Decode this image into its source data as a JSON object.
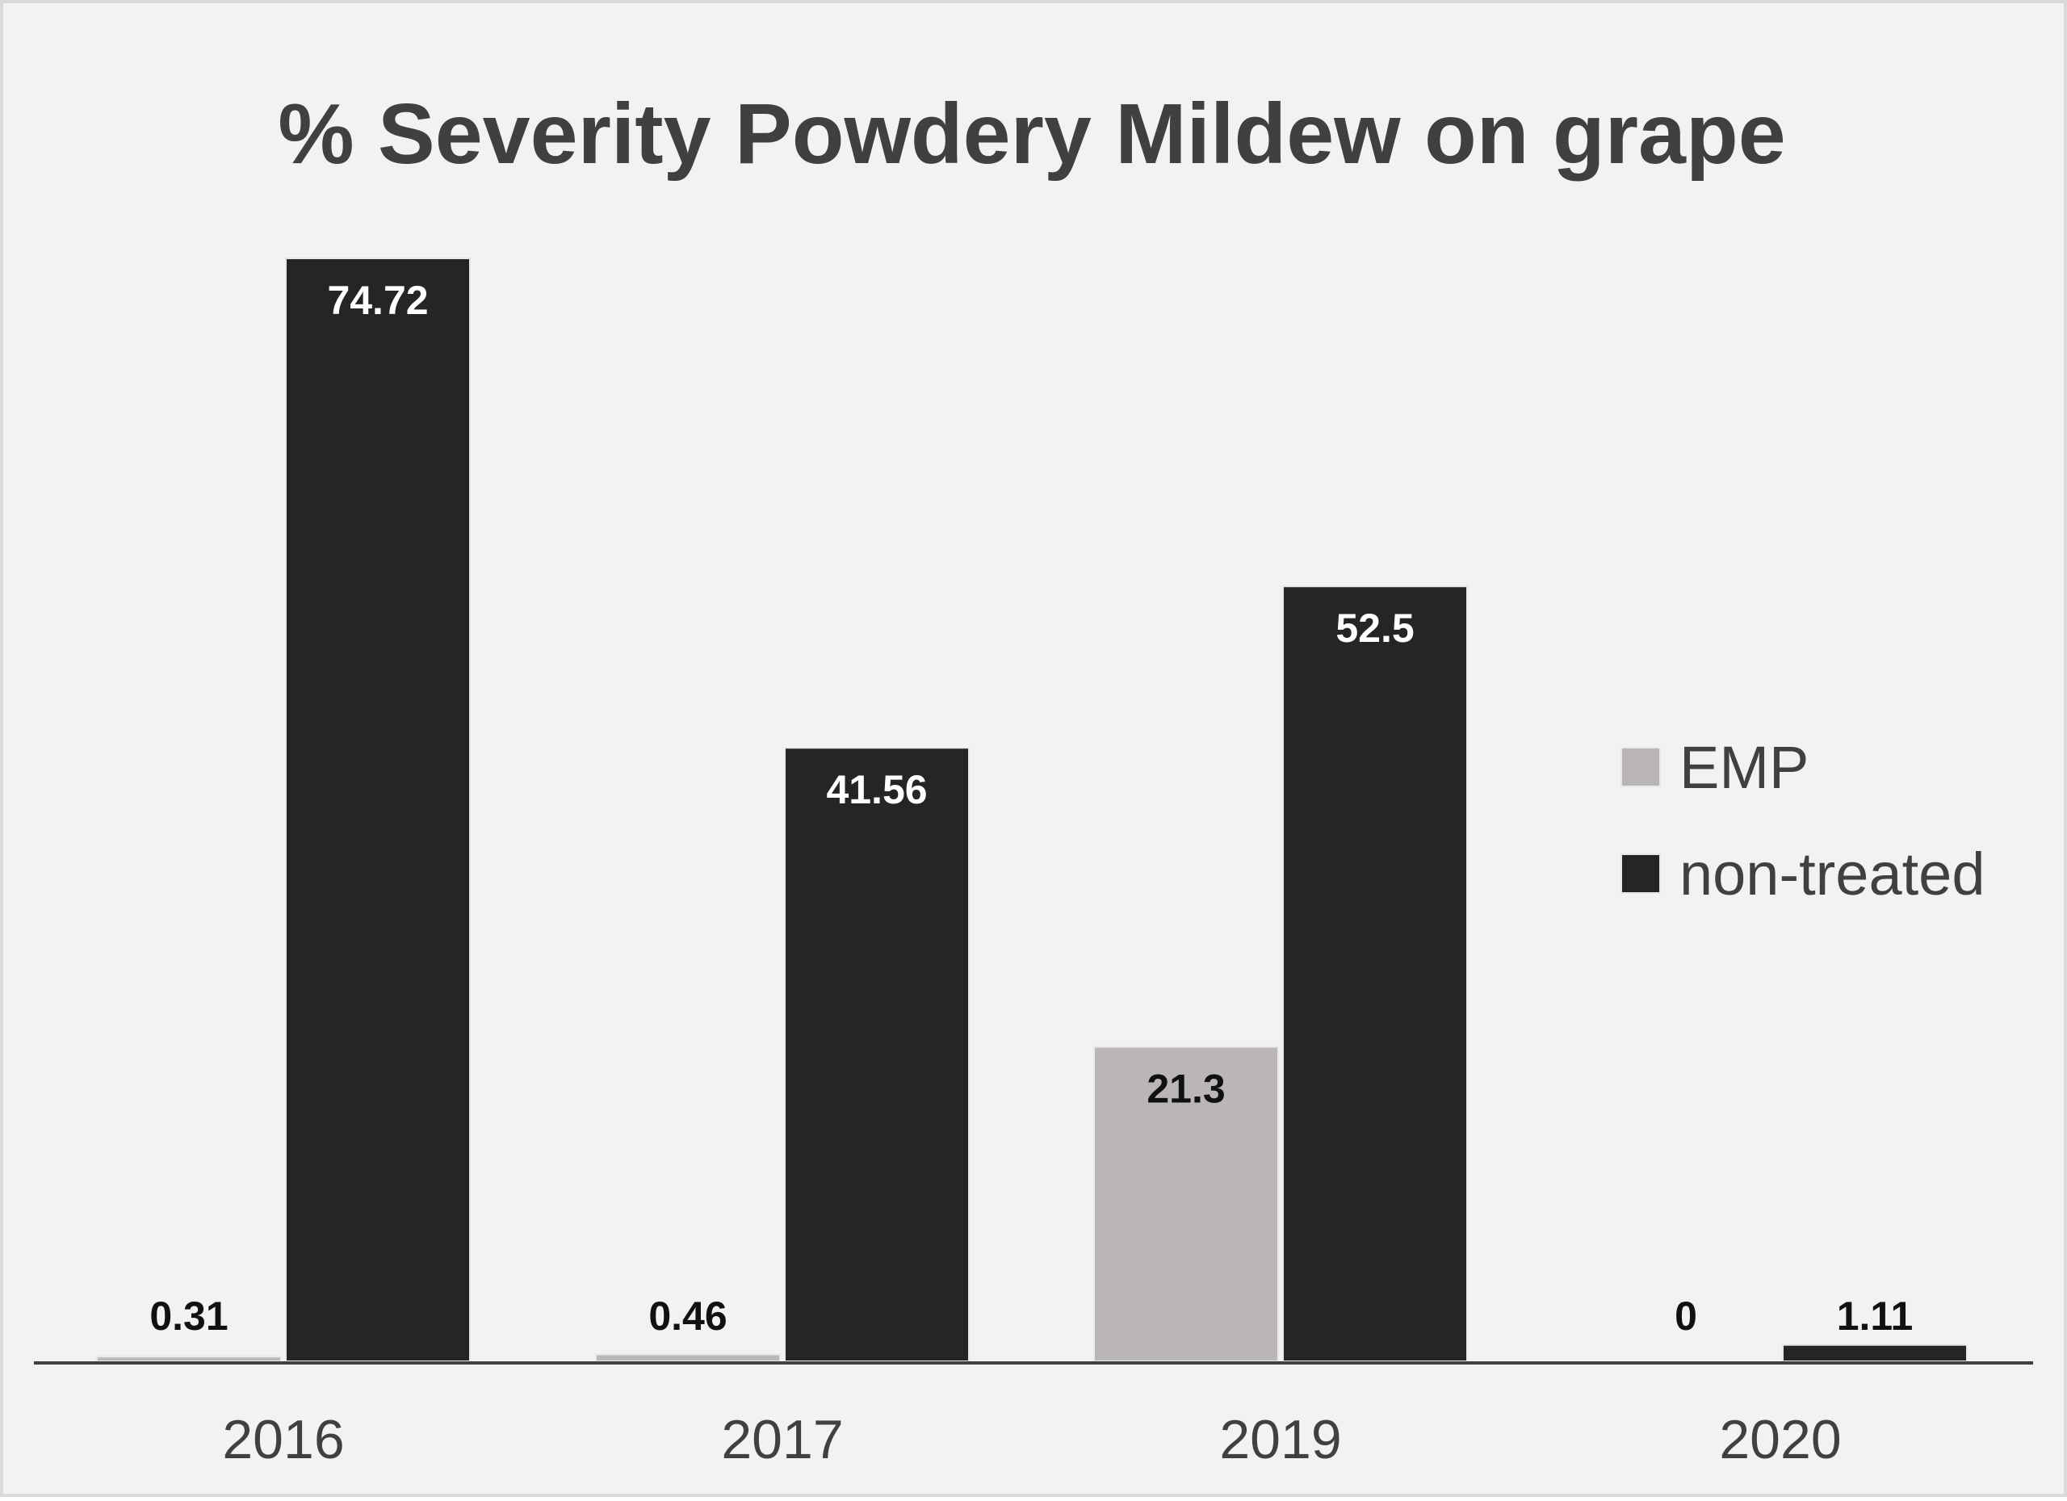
{
  "chart_data": {
    "type": "bar",
    "title": "% Severity Powdery Mildew on grape",
    "xlabel": "",
    "ylabel": "",
    "categories": [
      "2016",
      "2017",
      "2019",
      "2020"
    ],
    "series": [
      {
        "name": "EMP",
        "values": [
          0.31,
          0.46,
          21.3,
          0
        ],
        "color": "#bab6b6",
        "labels": [
          "0.31",
          "0.46",
          "21.3",
          "0"
        ]
      },
      {
        "name": "non-treated",
        "values": [
          74.72,
          41.56,
          52.5,
          1.11
        ],
        "color": "#252525",
        "labels": [
          "74.72",
          "41.56",
          "52.5",
          "1.11"
        ]
      }
    ],
    "ylim": [
      0,
      80
    ],
    "grid": false,
    "legend_position": "right",
    "data_labels": true,
    "background_color": "#f2f2f2",
    "text_color": "#404040"
  }
}
